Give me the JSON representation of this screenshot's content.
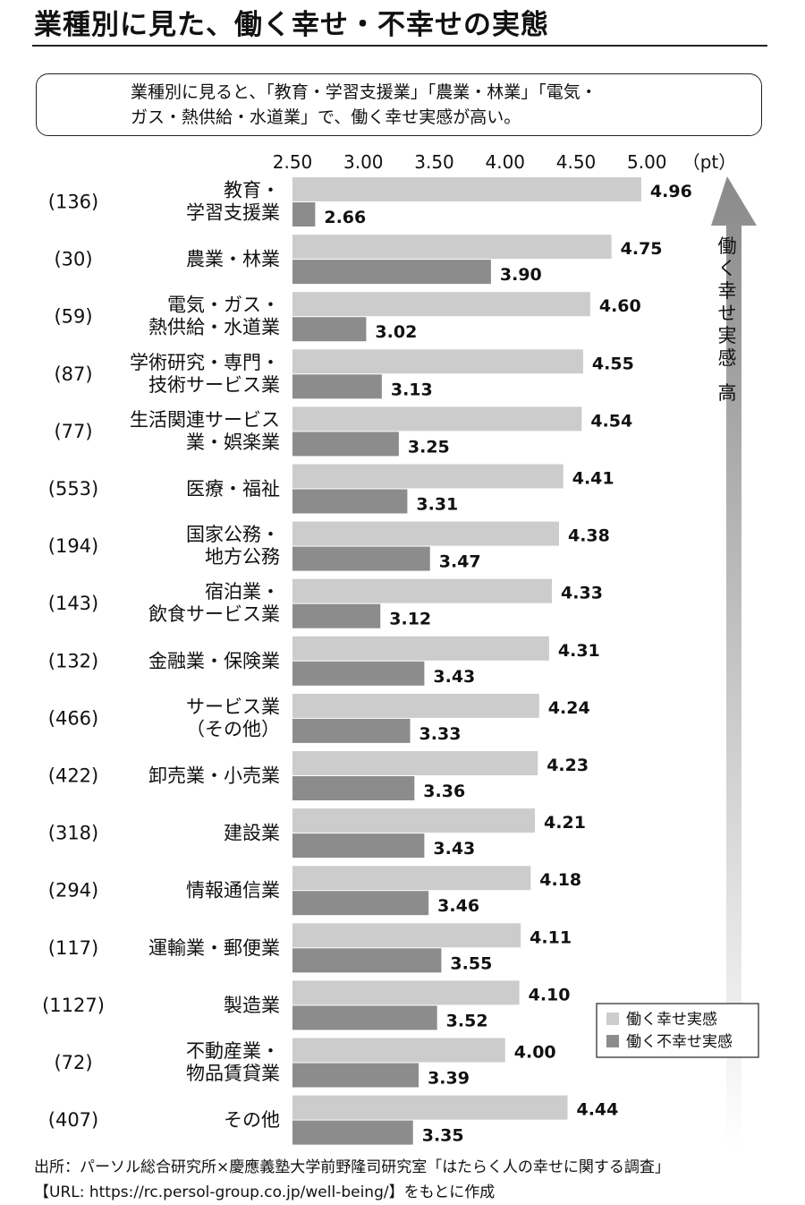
{
  "title": "業種別に見た、働く幸せ・不幸せの実態",
  "note": {
    "line1": "業種別に見ると、「教育・学習支援業」「農業・林業」「電気・",
    "line2": "ガス・熱供給・水道業」で、働く幸せ実感が高い。"
  },
  "arrow_label": "働く幸せ実感　高",
  "source": {
    "line1": "出所：パーソル総合研究所×慶應義塾大学前野隆司研究室「はたらく人の幸せに関する調査」",
    "line2": "【URL: https://rc.persol-group.co.jp/well-being/】をもとに作成"
  },
  "colors": {
    "happy": "#cccccc",
    "unhappy": "#8c8c8c",
    "arrow_top": "#8a8a8a",
    "arrow_bottom": "#ffffff"
  },
  "chart_data": {
    "type": "bar",
    "orientation": "horizontal",
    "unit": "（pt）",
    "xlim": [
      2.5,
      5.0
    ],
    "ticks": [
      "2.50",
      "3.00",
      "3.50",
      "4.00",
      "4.50",
      "5.00"
    ],
    "legend_position": "bottom-right",
    "categories": [
      {
        "label": [
          "教育・",
          "学習支援業"
        ],
        "n": "(136)"
      },
      {
        "label": [
          "農業・林業"
        ],
        "n": "(30)"
      },
      {
        "label": [
          "電気・ガス・",
          "熱供給・水道業"
        ],
        "n": "(59)"
      },
      {
        "label": [
          "学術研究・専門・",
          "技術サービス業"
        ],
        "n": "(87)"
      },
      {
        "label": [
          "生活関連サービス",
          "業・娯楽業"
        ],
        "n": "(77)"
      },
      {
        "label": [
          "医療・福祉"
        ],
        "n": "(553)"
      },
      {
        "label": [
          "国家公務・",
          "地方公務"
        ],
        "n": "(194)"
      },
      {
        "label": [
          "宿泊業・",
          "飲食サービス業"
        ],
        "n": "(143)"
      },
      {
        "label": [
          "金融業・保険業"
        ],
        "n": "(132)"
      },
      {
        "label": [
          "サービス業",
          "（その他）"
        ],
        "n": "(466)"
      },
      {
        "label": [
          "卸売業・小売業"
        ],
        "n": "(422)"
      },
      {
        "label": [
          "建設業"
        ],
        "n": "(318)"
      },
      {
        "label": [
          "情報通信業"
        ],
        "n": "(294)"
      },
      {
        "label": [
          "運輸業・郵便業"
        ],
        "n": "(117)"
      },
      {
        "label": [
          "製造業"
        ],
        "n": "(1127)"
      },
      {
        "label": [
          "不動産業・",
          "物品賃貸業"
        ],
        "n": "(72)"
      },
      {
        "label": [
          "その他"
        ],
        "n": "(407)"
      }
    ],
    "series": [
      {
        "name": "働く幸せ実感",
        "values": [
          4.96,
          4.75,
          4.6,
          4.55,
          4.54,
          4.41,
          4.38,
          4.33,
          4.31,
          4.24,
          4.23,
          4.21,
          4.18,
          4.11,
          4.1,
          4.0,
          4.44
        ]
      },
      {
        "name": "働く不幸せ実感",
        "values": [
          2.66,
          3.9,
          3.02,
          3.13,
          3.25,
          3.31,
          3.47,
          3.12,
          3.43,
          3.33,
          3.36,
          3.43,
          3.46,
          3.55,
          3.52,
          3.39,
          3.35
        ]
      }
    ]
  }
}
